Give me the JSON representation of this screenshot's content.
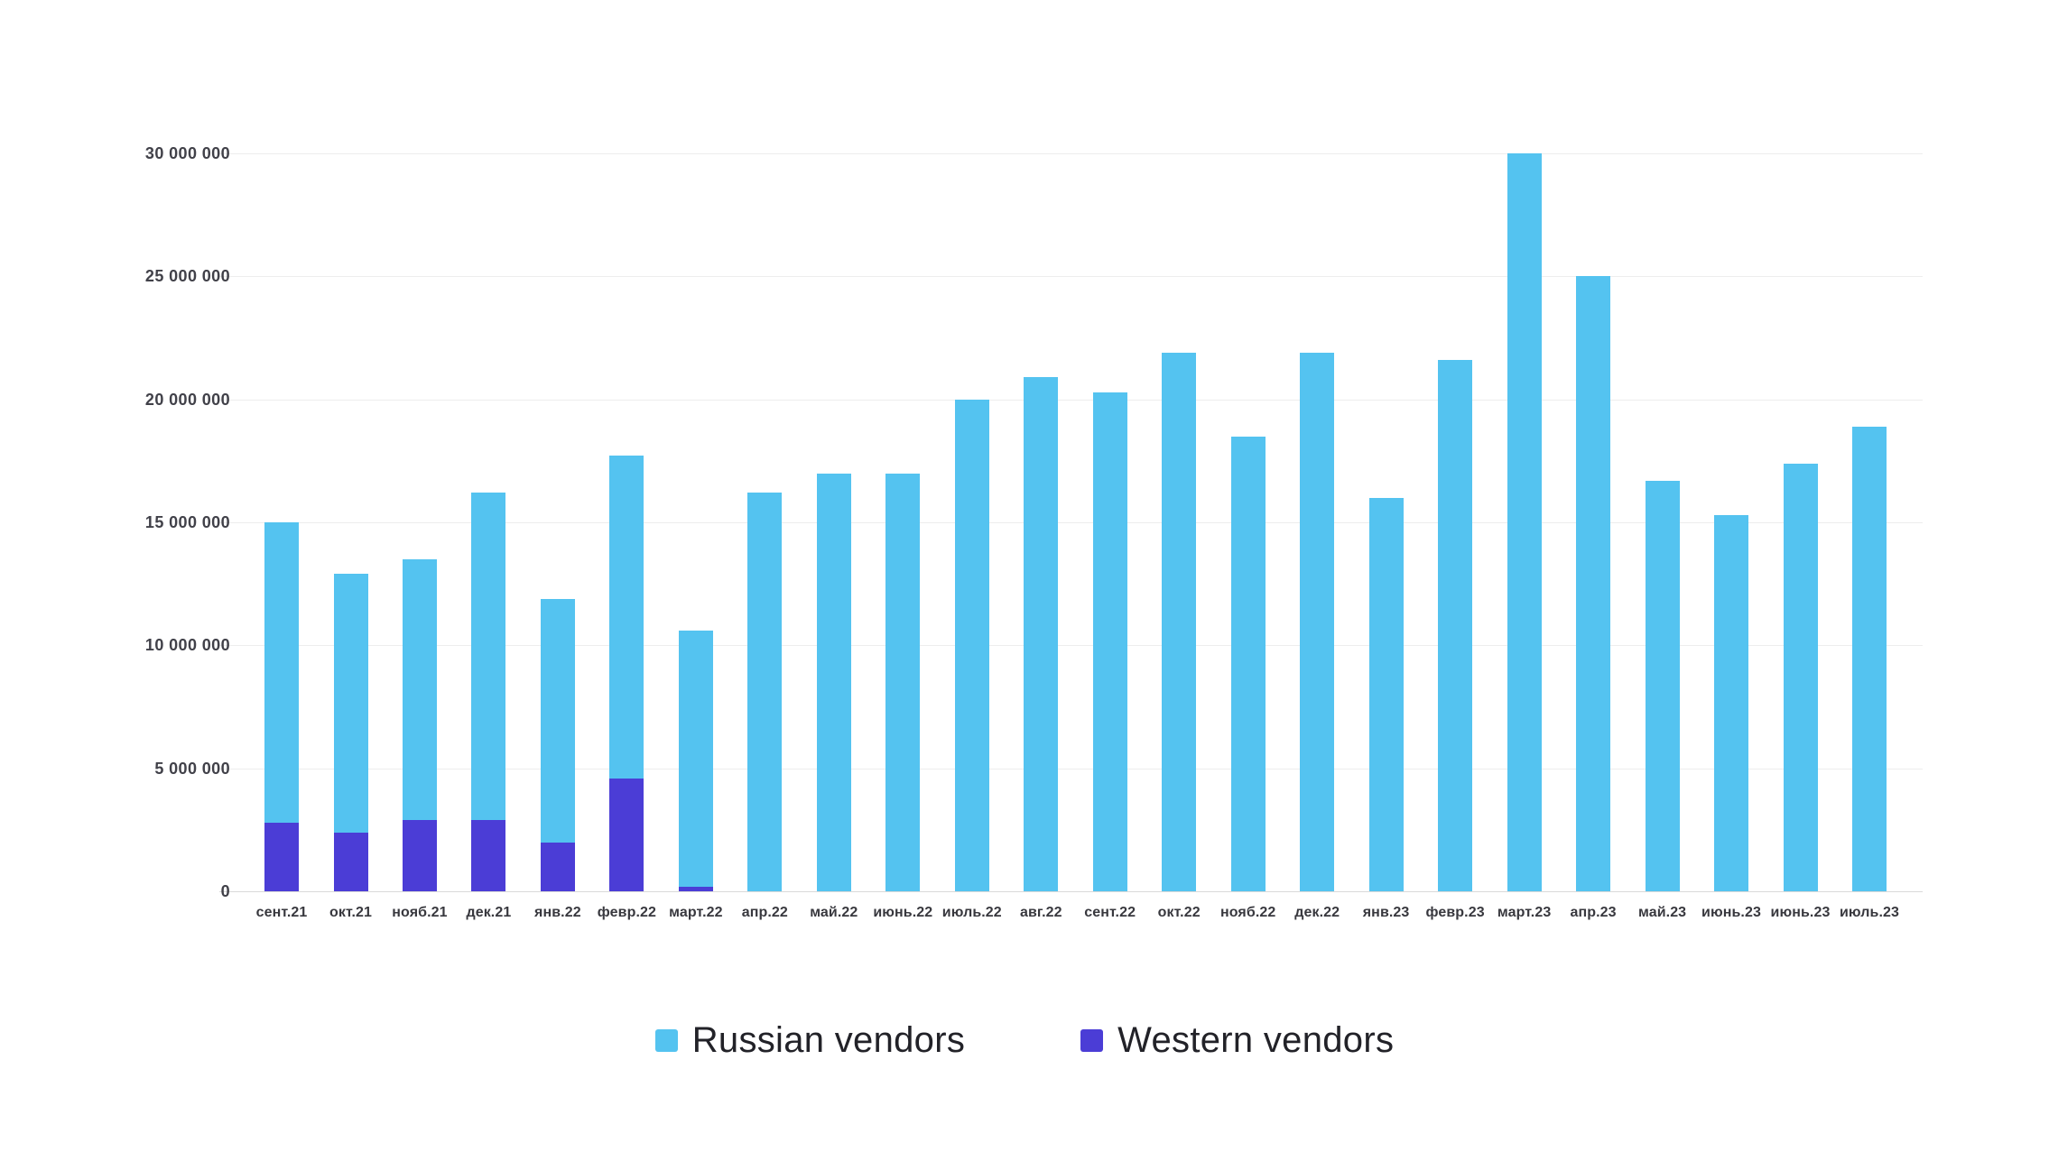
{
  "chart_data": {
    "type": "bar",
    "stacked": true,
    "title": "",
    "xlabel": "",
    "ylabel": "",
    "legend_position": "bottom",
    "grid": true,
    "categories": [
      "сент.21",
      "окт.21",
      "нояб.21",
      "дек.21",
      "янв.22",
      "февр.22",
      "март.22",
      "апр.22",
      "май.22",
      "июнь.22",
      "июль.22",
      "авг.22",
      "сент.22",
      "окт.22",
      "нояб.22",
      "дек.22",
      "янв.23",
      "февр.23",
      "март.23",
      "апр.23",
      "май.23",
      "июнь.23",
      "июнь.23",
      "июль.23"
    ],
    "series": [
      {
        "name": "Russian vendors",
        "color": "#54c3f0",
        "values": [
          12200000,
          10500000,
          10600000,
          13300000,
          9900000,
          13100000,
          10400000,
          16200000,
          17000000,
          17000000,
          20000000,
          20900000,
          20300000,
          21900000,
          18500000,
          21900000,
          16000000,
          21600000,
          30000000,
          25000000,
          16700000,
          15300000,
          17400000,
          18900000
        ]
      },
      {
        "name": "Western vendors",
        "color": "#4b3dd6",
        "values": [
          2800000,
          2400000,
          2900000,
          2900000,
          2000000,
          4600000,
          200000,
          0,
          0,
          0,
          0,
          0,
          0,
          0,
          0,
          0,
          0,
          0,
          0,
          0,
          0,
          0,
          0,
          0
        ]
      }
    ],
    "y_axis": {
      "max": 30000000,
      "tick_step": 5000000,
      "ticks": [
        "0",
        "5 000 000",
        "10 000 000",
        "15 000 000",
        "20 000 000",
        "25 000 000",
        "30 000 000"
      ]
    }
  }
}
